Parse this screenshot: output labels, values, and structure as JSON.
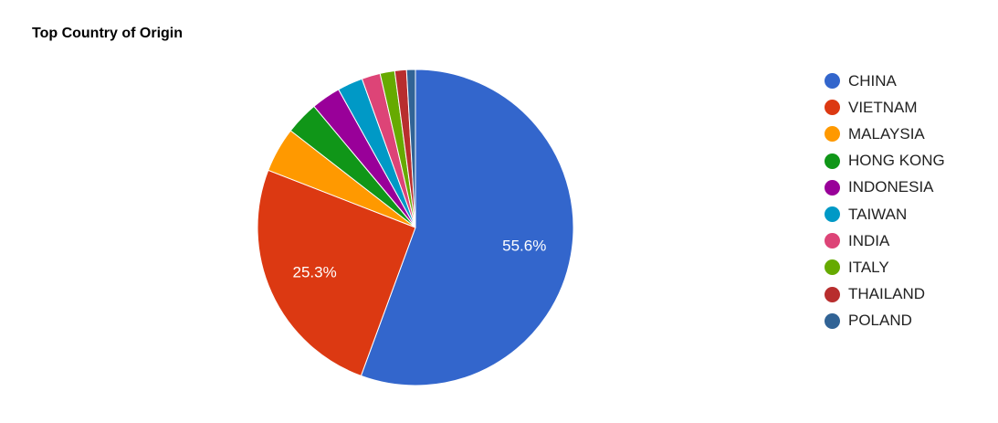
{
  "chart_data": {
    "type": "pie",
    "title": "Top Country of Origin",
    "categories": [
      "CHINA",
      "VIETNAM",
      "MALAYSIA",
      "HONG KONG",
      "INDONESIA",
      "TAIWAN",
      "INDIA",
      "ITALY",
      "THAILAND",
      "POLAND"
    ],
    "values": [
      55.6,
      25.3,
      4.6,
      3.4,
      3.0,
      2.6,
      1.9,
      1.5,
      1.2,
      0.9
    ],
    "colors": [
      "#3366cc",
      "#dc3912",
      "#ff9900",
      "#109618",
      "#990099",
      "#0099c6",
      "#dd4477",
      "#66aa00",
      "#b82e2e",
      "#316395"
    ],
    "data_labels": [
      "55.6%",
      "25.3%",
      "",
      "",
      "",
      "",
      "",
      "",
      "",
      ""
    ],
    "legend_position": "right"
  }
}
